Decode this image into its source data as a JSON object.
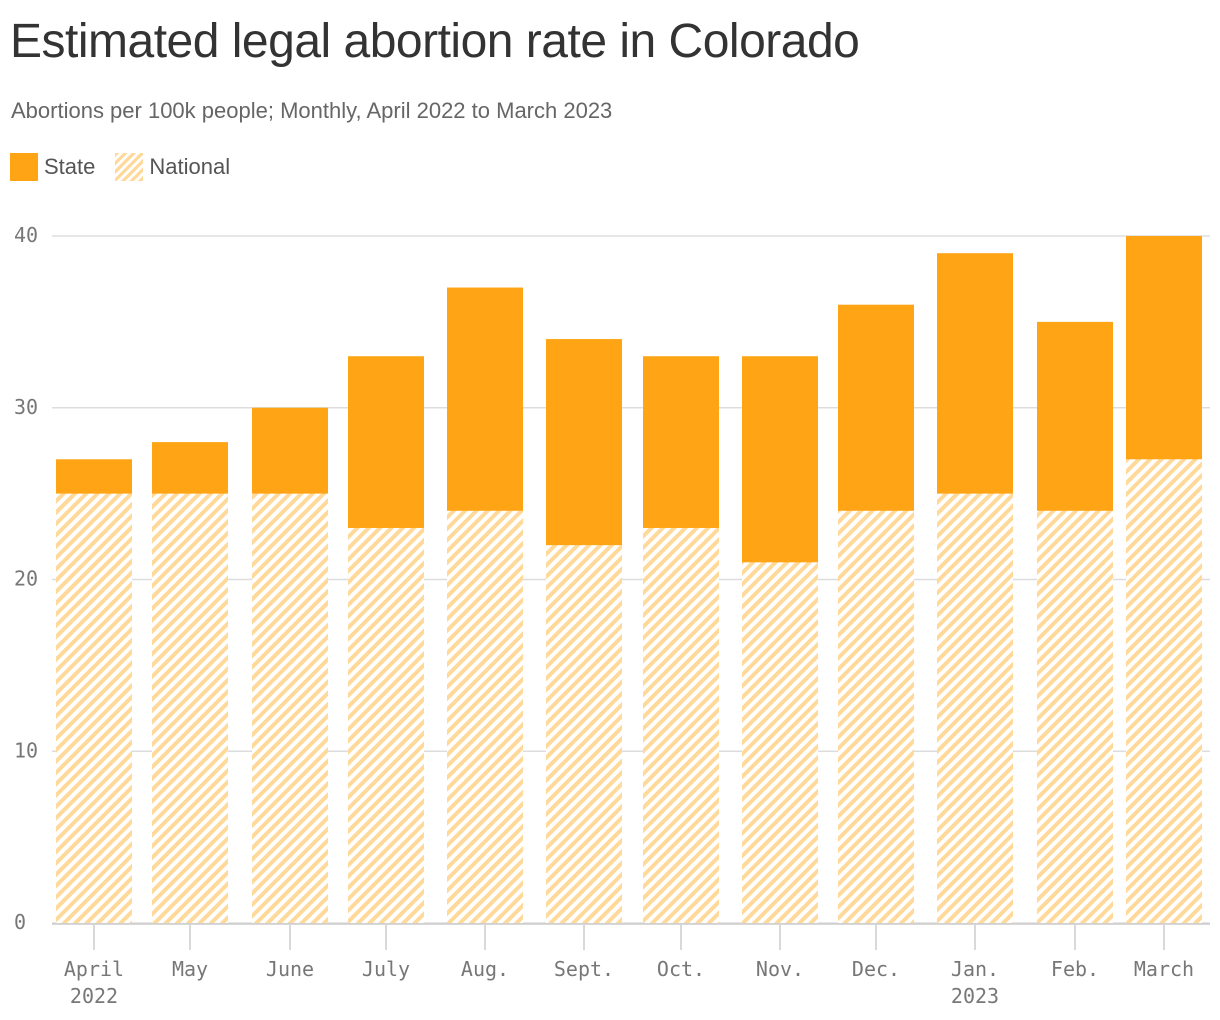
{
  "title": "Estimated legal abortion rate in Colorado",
  "subtitle": "Abortions per 100k people; Monthly, April 2022 to March 2023",
  "legend": {
    "state_label": "State",
    "national_label": "National"
  },
  "colors": {
    "state": "#ffa515",
    "national_stripe": "#ffd99a",
    "grid": "#dddddd",
    "axis_text": "#777777"
  },
  "chart_data": {
    "type": "bar",
    "categories": [
      "April",
      "May",
      "June",
      "July",
      "Aug.",
      "Sept.",
      "Oct.",
      "Nov.",
      "Dec.",
      "Jan.",
      "Feb.",
      "March"
    ],
    "category_sublabels": [
      "2022",
      "",
      "",
      "",
      "",
      "",
      "",
      "",
      "",
      "2023",
      "",
      ""
    ],
    "series": [
      {
        "name": "State",
        "values": [
          27,
          28,
          30,
          33,
          37,
          34,
          33,
          33,
          36,
          39,
          35,
          40
        ]
      },
      {
        "name": "National",
        "values": [
          25,
          25,
          25,
          23,
          24,
          22,
          23,
          21,
          24,
          25,
          24,
          27
        ]
      }
    ],
    "yticks": [
      0,
      10,
      20,
      30,
      40
    ],
    "ylim": [
      0,
      40
    ],
    "grid": true,
    "legend_position": "top-left",
    "overlay": true
  }
}
